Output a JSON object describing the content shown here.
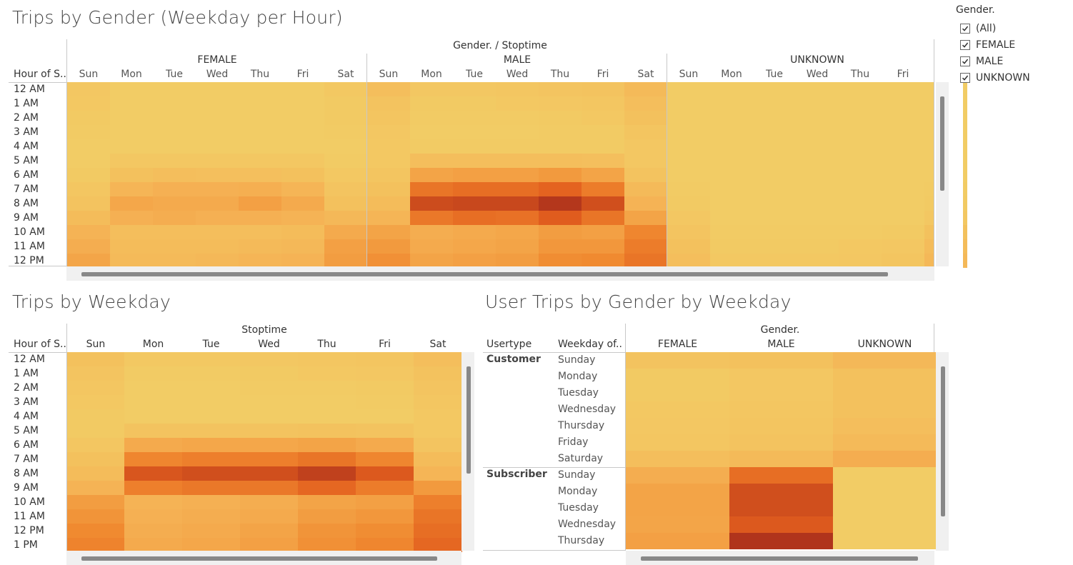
{
  "filter": {
    "title": "Gender.",
    "items": [
      {
        "label": "(All)",
        "checked": true
      },
      {
        "label": "FEMALE",
        "checked": true
      },
      {
        "label": "MALE",
        "checked": true
      },
      {
        "label": "UNKNOWN",
        "checked": true
      }
    ]
  },
  "chart_data": [
    {
      "type": "heatmap",
      "title": "Trips by Gender (Weekday per Hour)",
      "column_header": "Gender. / Stoptime",
      "row_header": "Hour of S..",
      "groups": [
        "FEMALE",
        "MALE",
        "UNKNOWN"
      ],
      "days": [
        "Sun",
        "Mon",
        "Tue",
        "Wed",
        "Thu",
        "Fri",
        "Sat"
      ],
      "rows": [
        "12 AM",
        "1 AM",
        "2 AM",
        "3 AM",
        "4 AM",
        "5 AM",
        "6 AM",
        "7 AM",
        "8 AM",
        "9 AM",
        "10 AM",
        "11 AM",
        "12 PM"
      ],
      "scale": "relative intensity 0-1",
      "values": {
        "FEMALE": [
          [
            0.06,
            0.02,
            0.02,
            0.02,
            0.02,
            0.02,
            0.05
          ],
          [
            0.05,
            0.02,
            0.02,
            0.02,
            0.02,
            0.02,
            0.04
          ],
          [
            0.04,
            0.02,
            0.02,
            0.02,
            0.02,
            0.02,
            0.04
          ],
          [
            0.03,
            0.02,
            0.02,
            0.02,
            0.02,
            0.02,
            0.03
          ],
          [
            0.02,
            0.02,
            0.02,
            0.02,
            0.02,
            0.02,
            0.02
          ],
          [
            0.02,
            0.06,
            0.06,
            0.06,
            0.06,
            0.06,
            0.03
          ],
          [
            0.04,
            0.12,
            0.14,
            0.13,
            0.13,
            0.12,
            0.05
          ],
          [
            0.07,
            0.22,
            0.26,
            0.26,
            0.27,
            0.22,
            0.09
          ],
          [
            0.1,
            0.32,
            0.3,
            0.3,
            0.36,
            0.3,
            0.12
          ],
          [
            0.16,
            0.26,
            0.28,
            0.26,
            0.26,
            0.24,
            0.2
          ],
          [
            0.24,
            0.14,
            0.14,
            0.14,
            0.14,
            0.16,
            0.3
          ],
          [
            0.28,
            0.16,
            0.16,
            0.16,
            0.18,
            0.2,
            0.36
          ],
          [
            0.33,
            0.18,
            0.18,
            0.2,
            0.22,
            0.24,
            0.38
          ]
        ],
        "MALE": [
          [
            0.14,
            0.06,
            0.06,
            0.07,
            0.09,
            0.1,
            0.18
          ],
          [
            0.1,
            0.04,
            0.04,
            0.05,
            0.06,
            0.07,
            0.14
          ],
          [
            0.08,
            0.03,
            0.03,
            0.03,
            0.04,
            0.05,
            0.12
          ],
          [
            0.06,
            0.02,
            0.02,
            0.02,
            0.03,
            0.03,
            0.08
          ],
          [
            0.05,
            0.03,
            0.03,
            0.03,
            0.03,
            0.03,
            0.06
          ],
          [
            0.05,
            0.14,
            0.14,
            0.14,
            0.14,
            0.13,
            0.06
          ],
          [
            0.08,
            0.34,
            0.36,
            0.36,
            0.4,
            0.34,
            0.1
          ],
          [
            0.12,
            0.62,
            0.66,
            0.66,
            0.72,
            0.58,
            0.18
          ],
          [
            0.16,
            0.86,
            0.88,
            0.88,
            0.98,
            0.84,
            0.24
          ],
          [
            0.22,
            0.6,
            0.66,
            0.64,
            0.76,
            0.62,
            0.34
          ],
          [
            0.34,
            0.28,
            0.3,
            0.32,
            0.38,
            0.36,
            0.52
          ],
          [
            0.4,
            0.3,
            0.32,
            0.34,
            0.42,
            0.42,
            0.58
          ],
          [
            0.46,
            0.34,
            0.36,
            0.38,
            0.48,
            0.5,
            0.62
          ]
        ],
        "UNKNOWN": [
          [
            0.02,
            0.02,
            0.02,
            0.02,
            0.02,
            0.02,
            0.02
          ],
          [
            0.02,
            0.02,
            0.02,
            0.02,
            0.02,
            0.02,
            0.02
          ],
          [
            0.02,
            0.02,
            0.02,
            0.02,
            0.02,
            0.02,
            0.02
          ],
          [
            0.02,
            0.02,
            0.02,
            0.02,
            0.02,
            0.02,
            0.02
          ],
          [
            0.02,
            0.02,
            0.02,
            0.02,
            0.02,
            0.02,
            0.02
          ],
          [
            0.02,
            0.02,
            0.02,
            0.02,
            0.02,
            0.02,
            0.02
          ],
          [
            0.02,
            0.02,
            0.02,
            0.02,
            0.02,
            0.02,
            0.02
          ],
          [
            0.03,
            0.02,
            0.02,
            0.02,
            0.02,
            0.02,
            0.03
          ],
          [
            0.04,
            0.02,
            0.02,
            0.02,
            0.02,
            0.02,
            0.04
          ],
          [
            0.06,
            0.02,
            0.02,
            0.02,
            0.02,
            0.02,
            0.06
          ],
          [
            0.09,
            0.03,
            0.03,
            0.03,
            0.03,
            0.04,
            0.12
          ],
          [
            0.12,
            0.04,
            0.04,
            0.04,
            0.05,
            0.06,
            0.16
          ],
          [
            0.14,
            0.05,
            0.05,
            0.05,
            0.06,
            0.08,
            0.2
          ]
        ]
      }
    },
    {
      "type": "heatmap",
      "title": "Trips by Weekday",
      "column_header": "Stoptime",
      "row_header": "Hour of S..",
      "days": [
        "Sun",
        "Mon",
        "Tue",
        "Wed",
        "Thu",
        "Fri",
        "Sat"
      ],
      "rows": [
        "12 AM",
        "1 AM",
        "2 AM",
        "3 AM",
        "4 AM",
        "5 AM",
        "6 AM",
        "7 AM",
        "8 AM",
        "9 AM",
        "10 AM",
        "11 AM",
        "12 PM",
        "1 PM"
      ],
      "scale": "relative intensity 0-1",
      "values": [
        [
          0.12,
          0.05,
          0.05,
          0.06,
          0.07,
          0.08,
          0.14
        ],
        [
          0.09,
          0.03,
          0.03,
          0.04,
          0.05,
          0.06,
          0.11
        ],
        [
          0.07,
          0.02,
          0.02,
          0.03,
          0.03,
          0.04,
          0.09
        ],
        [
          0.05,
          0.02,
          0.02,
          0.02,
          0.02,
          0.03,
          0.07
        ],
        [
          0.04,
          0.02,
          0.02,
          0.02,
          0.02,
          0.02,
          0.05
        ],
        [
          0.04,
          0.1,
          0.1,
          0.1,
          0.11,
          0.1,
          0.05
        ],
        [
          0.07,
          0.3,
          0.32,
          0.32,
          0.34,
          0.3,
          0.09
        ],
        [
          0.12,
          0.52,
          0.56,
          0.56,
          0.62,
          0.52,
          0.16
        ],
        [
          0.16,
          0.8,
          0.84,
          0.84,
          0.92,
          0.78,
          0.22
        ],
        [
          0.24,
          0.56,
          0.6,
          0.6,
          0.7,
          0.58,
          0.4
        ],
        [
          0.38,
          0.24,
          0.26,
          0.28,
          0.34,
          0.36,
          0.56
        ],
        [
          0.44,
          0.26,
          0.28,
          0.3,
          0.38,
          0.42,
          0.62
        ],
        [
          0.5,
          0.28,
          0.3,
          0.34,
          0.44,
          0.48,
          0.66
        ],
        [
          0.54,
          0.3,
          0.32,
          0.36,
          0.46,
          0.52,
          0.7
        ]
      ]
    },
    {
      "type": "heatmap",
      "title": "User Trips by Gender by Weekday",
      "column_header": "Gender.",
      "row_headers": [
        "Usertype",
        "Weekday of.."
      ],
      "columns": [
        "FEMALE",
        "MALE",
        "UNKNOWN"
      ],
      "usertypes": [
        {
          "name": "Customer",
          "days": [
            "Sunday",
            "Monday",
            "Tuesday",
            "Wednesday",
            "Thursday",
            "Friday",
            "Saturday"
          ]
        },
        {
          "name": "Subscriber",
          "days": [
            "Sunday",
            "Monday",
            "Tuesday",
            "Wednesday",
            "Thursday"
          ]
        }
      ],
      "scale": "relative intensity 0-1",
      "values": [
        [
          0.1,
          0.12,
          0.2
        ],
        [
          0.04,
          0.06,
          0.12
        ],
        [
          0.04,
          0.06,
          0.12
        ],
        [
          0.05,
          0.07,
          0.12
        ],
        [
          0.06,
          0.08,
          0.14
        ],
        [
          0.07,
          0.1,
          0.18
        ],
        [
          0.14,
          0.18,
          0.28
        ],
        [
          0.28,
          0.66,
          0.02
        ],
        [
          0.34,
          0.84,
          0.02
        ],
        [
          0.34,
          0.84,
          0.02
        ],
        [
          0.33,
          0.78,
          0.02
        ],
        [
          0.36,
          1.0,
          0.02
        ]
      ]
    }
  ]
}
